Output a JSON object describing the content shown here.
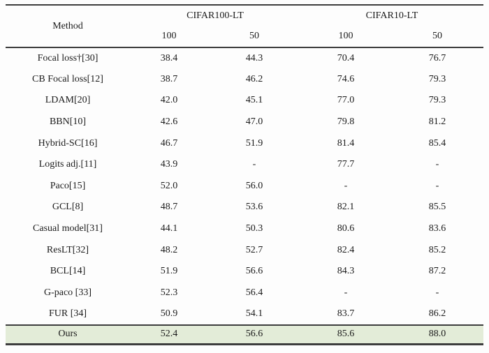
{
  "colors": {
    "highlight": "#e3ecd8",
    "rule": "#3d3d3d",
    "text": "#1b1b1b",
    "background": "#fdfdfd"
  },
  "table": {
    "method_header": "Method",
    "group_headers": [
      {
        "label": "CIFAR100-LT"
      },
      {
        "label": "CIFAR10-LT"
      }
    ],
    "sub_headers": [
      "100",
      "50",
      "100",
      "50"
    ],
    "rows": [
      {
        "method": "Focal loss†[30]",
        "values": [
          "38.4",
          "44.3",
          "70.4",
          "76.7"
        ]
      },
      {
        "method": "CB Focal loss[12]",
        "values": [
          "38.7",
          "46.2",
          "74.6",
          "79.3"
        ]
      },
      {
        "method": "LDAM[20]",
        "values": [
          "42.0",
          "45.1",
          "77.0",
          "79.3"
        ]
      },
      {
        "method": "BBN[10]",
        "values": [
          "42.6",
          "47.0",
          "79.8",
          "81.2"
        ]
      },
      {
        "method": "Hybrid-SC[16]",
        "values": [
          "46.7",
          "51.9",
          "81.4",
          "85.4"
        ]
      },
      {
        "method": "Logits adj.[11]",
        "values": [
          "43.9",
          "-",
          "77.7",
          "-"
        ]
      },
      {
        "method": "Paco[15]",
        "values": [
          "52.0",
          "56.0",
          "-",
          "-"
        ]
      },
      {
        "method": "GCL[8]",
        "values": [
          "48.7",
          "53.6",
          "82.1",
          "85.5"
        ]
      },
      {
        "method": "Casual model[31]",
        "values": [
          "44.1",
          "50.3",
          "80.6",
          "83.6"
        ]
      },
      {
        "method": "ResLT[32]",
        "values": [
          "48.2",
          "52.7",
          "82.4",
          "85.2"
        ]
      },
      {
        "method": "BCL[14]",
        "values": [
          "51.9",
          "56.6",
          "84.3",
          "87.2"
        ]
      },
      {
        "method": "G-paco [33]",
        "values": [
          "52.3",
          "56.4",
          "-",
          "-"
        ]
      },
      {
        "method": "FUR [34]",
        "values": [
          "50.9",
          "54.1",
          "83.7",
          "86.2"
        ]
      }
    ],
    "ours_row": {
      "method": "Ours",
      "values": [
        "52.4",
        "56.6",
        "85.6",
        "88.0"
      ]
    }
  },
  "chart_data": {
    "type": "table",
    "title": "",
    "columns": [
      "Method",
      "CIFAR100-LT 100",
      "CIFAR100-LT 50",
      "CIFAR10-LT 100",
      "CIFAR10-LT 50"
    ],
    "rows": [
      [
        "Focal loss†[30]",
        38.4,
        44.3,
        70.4,
        76.7
      ],
      [
        "CB Focal loss[12]",
        38.7,
        46.2,
        74.6,
        79.3
      ],
      [
        "LDAM[20]",
        42.0,
        45.1,
        77.0,
        79.3
      ],
      [
        "BBN[10]",
        42.6,
        47.0,
        79.8,
        81.2
      ],
      [
        "Hybrid-SC[16]",
        46.7,
        51.9,
        81.4,
        85.4
      ],
      [
        "Logits adj.[11]",
        43.9,
        null,
        77.7,
        null
      ],
      [
        "Paco[15]",
        52.0,
        56.0,
        null,
        null
      ],
      [
        "GCL[8]",
        48.7,
        53.6,
        82.1,
        85.5
      ],
      [
        "Casual model[31]",
        44.1,
        50.3,
        80.6,
        83.6
      ],
      [
        "ResLT[32]",
        48.2,
        52.7,
        82.4,
        85.2
      ],
      [
        "BCL[14]",
        51.9,
        56.6,
        84.3,
        87.2
      ],
      [
        "G-paco [33]",
        52.3,
        56.4,
        null,
        null
      ],
      [
        "FUR [34]",
        50.9,
        54.1,
        83.7,
        86.2
      ],
      [
        "Ours",
        52.4,
        56.6,
        85.6,
        88.0
      ]
    ]
  }
}
